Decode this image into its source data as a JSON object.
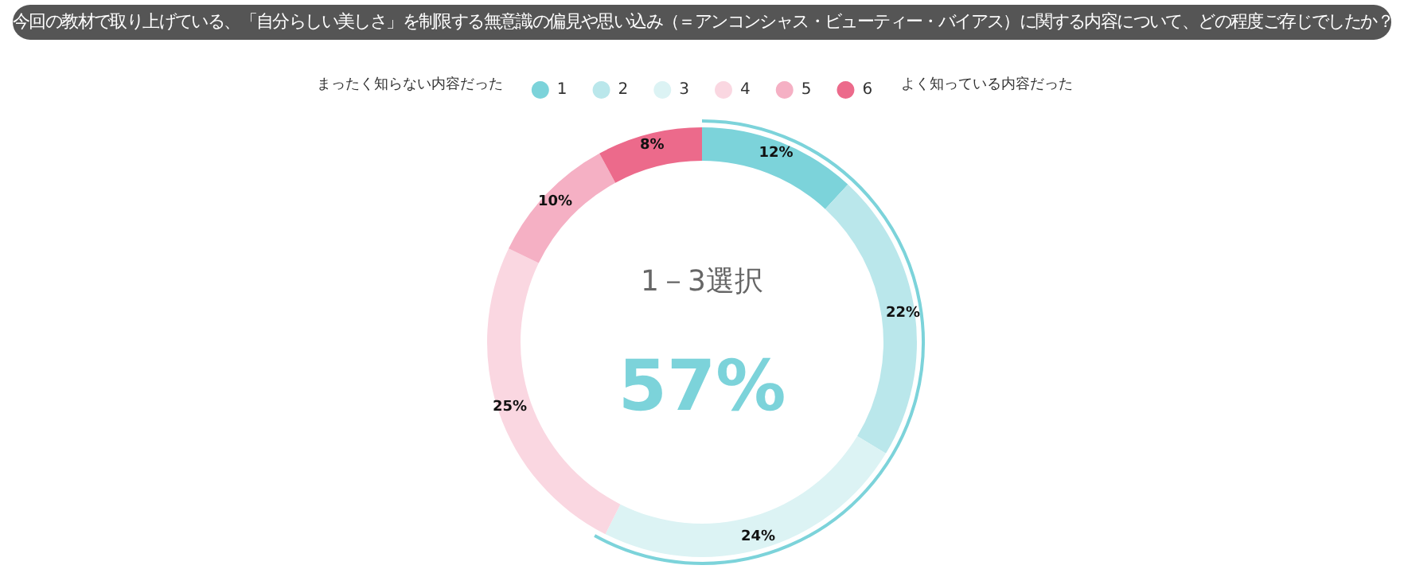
{
  "chart_data": {
    "type": "donut",
    "title": "今回の教材で取り上げている、「自分らしい美しさ」を制限する無意識の偏見や思い込み（＝アンコンシャス・ビューティー・バイアス）に関する内容について、どの程度ご存じでしたか？",
    "categories": [
      "1",
      "2",
      "3",
      "4",
      "5",
      "6"
    ],
    "values": [
      12,
      22,
      24,
      25,
      10,
      8
    ],
    "value_labels": [
      "12%",
      "22%",
      "24%",
      "25%",
      "10%",
      "8%"
    ],
    "colors": [
      "#7cd3da",
      "#bae7eb",
      "#dcf3f4",
      "#fad7e1",
      "#f5b0c4",
      "#ec6a8b"
    ],
    "legend": "top",
    "annotations": [
      "まったく知らない内容だった",
      "よく知っている内容だった",
      "1－3選択",
      "57%"
    ]
  }
}
